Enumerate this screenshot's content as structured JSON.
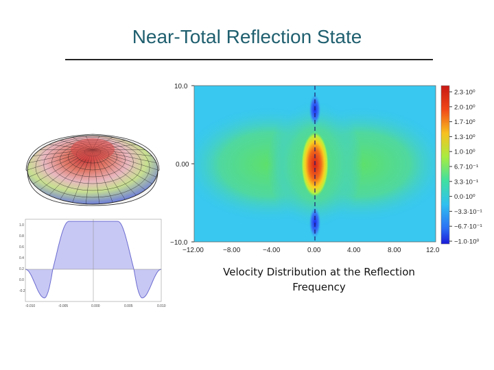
{
  "slide": {
    "title": "Near-Total Reflection State",
    "caption_line1": "Velocity Distribution at the Reflection",
    "caption_line2": "Frequency"
  },
  "field_plot": {
    "y_ticks": [
      "10.0",
      "0.00",
      "−10.0"
    ],
    "x_ticks": [
      "−12.00",
      "−8.00",
      "−4.00",
      "0.00",
      "4.00",
      "8.00",
      "12.0"
    ],
    "colorbar_labels": [
      "2.3·10⁰",
      "2.0·10⁰",
      "1.7·10⁰",
      "1.3·10⁰",
      "1.0·10⁰",
      "6.7·10⁻¹",
      "3.3·10⁻¹",
      "0.0·10⁰",
      "−3.3·10⁻¹",
      "−6.7·10⁻¹",
      "−1.0·10⁰"
    ]
  },
  "mode_plot": {
    "y_ticks": [
      "1.0",
      "0.8",
      "0.6",
      "0.4",
      "0.2",
      "0.0",
      "-0.2"
    ],
    "x_ticks": [
      "-0.010",
      "-0.005",
      "0.000",
      "0.005",
      "0.010"
    ]
  },
  "colors": {
    "title": "#1f5f6f",
    "field_low": "#2a3cff",
    "field_bg": "#38c8f0",
    "field_high": "#d8201a",
    "mode_fill": "#c8c8f4"
  }
}
